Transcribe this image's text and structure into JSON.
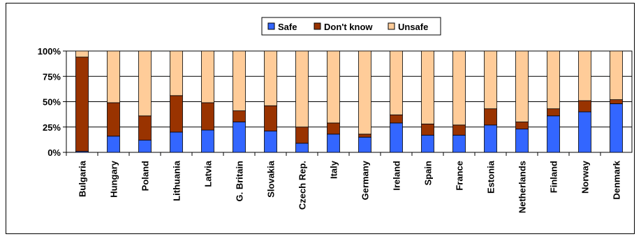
{
  "chart_data": {
    "type": "bar",
    "stacked": true,
    "percent_stacked": true,
    "categories": [
      "Bulgaria",
      "Hungary",
      "Poland",
      "Lithuania",
      "Latvia",
      "G. Britain",
      "Slovakia",
      "Czech Rep.",
      "Italy",
      "Germany",
      "Ireland",
      "Spain",
      "France",
      "Estonia",
      "Netherlands",
      "Finland",
      "Norway",
      "Denmark"
    ],
    "series": [
      {
        "name": "Safe",
        "color": "#3366ff",
        "values": [
          1,
          16,
          12,
          20,
          22,
          30,
          21,
          9,
          18,
          15,
          29,
          17,
          17,
          27,
          23,
          36,
          40,
          48
        ]
      },
      {
        "name": "Don't know",
        "color": "#993300",
        "values": [
          93,
          33,
          24,
          36,
          27,
          11,
          25,
          16,
          11,
          3,
          8,
          11,
          10,
          16,
          7,
          7,
          11,
          4
        ]
      },
      {
        "name": "Unsafe",
        "color": "#ffcc99",
        "values": [
          6,
          51,
          64,
          44,
          51,
          59,
          54,
          75,
          71,
          82,
          63,
          72,
          73,
          57,
          70,
          57,
          49,
          48
        ]
      }
    ],
    "yticks": [
      "0%",
      "25%",
      "50%",
      "75%",
      "100%"
    ],
    "ylim": [
      0,
      100
    ],
    "grid": true,
    "legend": "top-center",
    "plot_background": "#ffffff"
  }
}
